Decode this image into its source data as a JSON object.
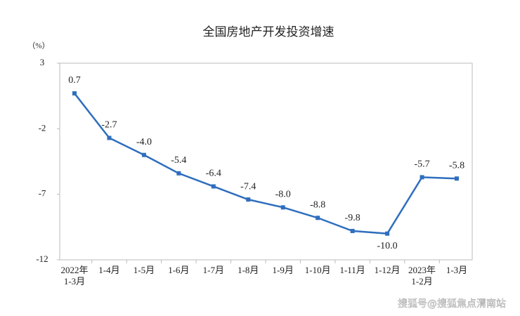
{
  "chart_data": {
    "type": "line",
    "title": "全国房地产开发投资增速",
    "y_label": "（%）",
    "categories": [
      "2022年\n1-3月",
      "1-4月",
      "1-5月",
      "1-6月",
      "1-7月",
      "1-8月",
      "1-9月",
      "1-10月",
      "1-11月",
      "1-12月",
      "2023年\n1-2月",
      "1-3月"
    ],
    "values": [
      0.7,
      -2.7,
      -4.0,
      -5.4,
      -6.4,
      -7.4,
      -8.0,
      -8.8,
      -9.8,
      -10.0,
      -5.7,
      -5.8
    ],
    "value_labels": [
      "0.7",
      "-2.7",
      "-4.0",
      "-5.4",
      "-6.4",
      "-7.4",
      "-8.0",
      "-8.8",
      "-9.8",
      "-10.0",
      "-5.7",
      "-5.8"
    ],
    "color": "#2f6ebd",
    "ylim": [
      -12,
      3
    ],
    "yticks": [
      3,
      -2,
      -7,
      -12
    ],
    "annotation": "搜狐号@搜狐焦点渭南站"
  }
}
